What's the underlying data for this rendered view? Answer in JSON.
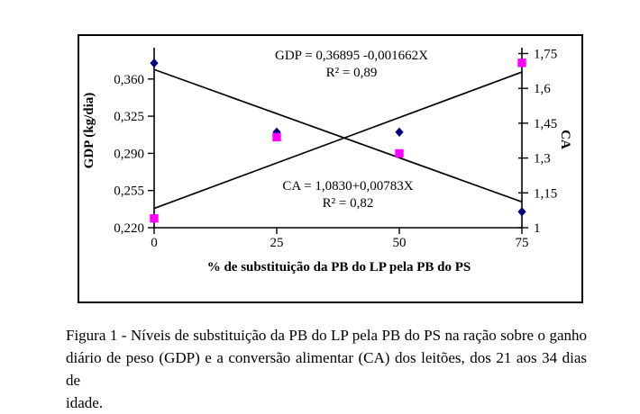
{
  "chart_data": {
    "type": "scatter",
    "x": [
      0,
      25,
      50,
      75
    ],
    "x_label": "% de substituição da PB do LP pela PB do PS",
    "x_ticks": [
      {
        "value": 0,
        "label": "0"
      },
      {
        "value": 25,
        "label": "25"
      },
      {
        "value": 50,
        "label": "50"
      },
      {
        "value": 75,
        "label": "75"
      }
    ],
    "left_axis": {
      "title": "GDP (kg/dia)",
      "range": [
        0.22,
        0.391
      ],
      "ticks": [
        {
          "value": 0.36,
          "label": "0,360"
        },
        {
          "value": 0.325,
          "label": "0,325"
        },
        {
          "value": 0.29,
          "label": "0,290"
        },
        {
          "value": 0.255,
          "label": "0,255"
        },
        {
          "value": 0.22,
          "label": "0,220"
        }
      ]
    },
    "right_axis": {
      "title": "CA",
      "range": [
        1.0,
        1.78
      ],
      "ticks": [
        {
          "value": 1.75,
          "label": "1,75"
        },
        {
          "value": 1.6,
          "label": "1,6"
        },
        {
          "value": 1.45,
          "label": "1,45"
        },
        {
          "value": 1.3,
          "label": "1,3"
        },
        {
          "value": 1.15,
          "label": "1,15"
        },
        {
          "value": 1.0,
          "label": "1"
        }
      ]
    },
    "series": [
      {
        "name": "GDP",
        "axis": "left",
        "marker": "diamond",
        "color": "#000080",
        "values": [
          0.375,
          0.31,
          0.31,
          0.235
        ]
      },
      {
        "name": "CA",
        "axis": "right",
        "marker": "square",
        "color": "#ff00ff",
        "values": [
          1.04,
          1.39,
          1.32,
          1.71
        ]
      }
    ],
    "trendlines": [
      {
        "series": "GDP",
        "axis": "left",
        "intercept": 0.36895,
        "slope": -0.001662,
        "equation": "GDP = 0,36895 -0,001662X",
        "r2": "R² = 0,89"
      },
      {
        "series": "CA",
        "axis": "right",
        "intercept": 1.083,
        "slope": 0.00783,
        "equation": "CA = 1,0830+0,00783X",
        "r2": "R² = 0,82"
      }
    ],
    "grid": false,
    "legend": "none",
    "line_color": "#000000"
  },
  "caption": {
    "lines": [
      "Figura 1 - Níveis de substituição da PB do LP pela PB do PS na ração sobre o ganho",
      "diário de peso (GDP) e a conversão alimentar (CA) dos leitões, dos 21 aos 34 dias de",
      "idade."
    ]
  }
}
